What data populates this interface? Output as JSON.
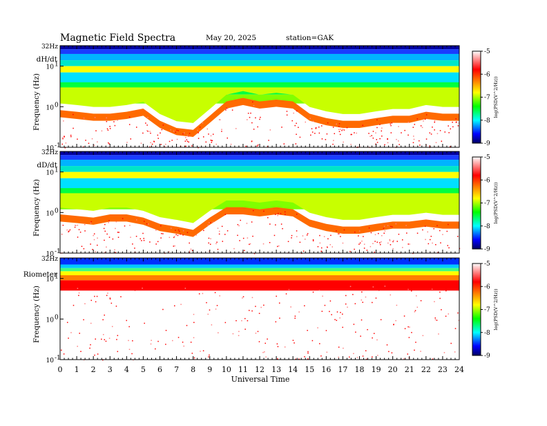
{
  "header": {
    "title": "Magnetic  Field  Spectra",
    "date": "May 20, 2025",
    "station": "station=GAK"
  },
  "chart_data": {
    "type": "heatmap",
    "xlabel": "Universal Time",
    "x_ticks": [
      "0",
      "1",
      "2",
      "3",
      "4",
      "5",
      "6",
      "7",
      "8",
      "9",
      "10",
      "11",
      "12",
      "13",
      "14",
      "15",
      "16",
      "17",
      "18",
      "19",
      "20",
      "21",
      "22",
      "23",
      "24"
    ],
    "xlim": [
      0,
      24
    ],
    "y_tick_labels": {
      "top": "32Hz",
      "upper": "10",
      "upper_exp": "1",
      "mid": "10",
      "mid_exp": "0",
      "low": "10",
      "low_exp": "-1"
    },
    "ylim_hz": [
      0.1,
      32
    ],
    "y_scale": "log",
    "colorbar": {
      "ticks": [
        "-5",
        "-6",
        "-7",
        "-8",
        "-9"
      ],
      "range": [
        -9,
        -5
      ],
      "label": "log(PSD(V^2/Hz))",
      "colors": [
        "#000060",
        "#0000ff",
        "#00ffff",
        "#00ff00",
        "#ffff00",
        "#ff0000",
        "#ffffff"
      ]
    },
    "panels": [
      {
        "label": "dH/dt",
        "ylabel": "Frequency  (Hz)",
        "noise_floor_hz": [
          0.55,
          0.5,
          0.45,
          0.45,
          0.5,
          0.6,
          0.3,
          0.2,
          0.18,
          0.4,
          0.9,
          1.1,
          0.9,
          1.0,
          0.9,
          0.45,
          0.35,
          0.3,
          0.3,
          0.35,
          0.4,
          0.4,
          0.5,
          0.45,
          0.45
        ]
      },
      {
        "label": "dD/dt",
        "ylabel": "Frequency  (Hz)",
        "noise_floor_hz": [
          0.6,
          0.55,
          0.5,
          0.6,
          0.6,
          0.5,
          0.35,
          0.3,
          0.25,
          0.5,
          0.9,
          0.9,
          0.8,
          0.9,
          0.8,
          0.45,
          0.35,
          0.3,
          0.3,
          0.35,
          0.4,
          0.4,
          0.45,
          0.4,
          0.4
        ]
      },
      {
        "label": "Riometer",
        "ylabel": "Frequency  (Hz)",
        "noise_floor_hz": [
          5,
          5,
          5,
          5,
          5,
          5,
          5,
          5,
          5,
          5,
          5,
          5,
          5,
          5,
          5,
          5,
          5,
          5,
          5,
          5,
          5,
          5,
          5,
          5,
          5
        ]
      }
    ]
  }
}
